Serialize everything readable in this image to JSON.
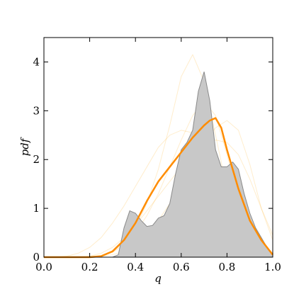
{
  "chart_data": {
    "type": "line",
    "x_label": "q",
    "y_label": "pdf",
    "xlim": [
      0,
      1
    ],
    "ylim": [
      0,
      4.5
    ],
    "xticks": [
      {
        "value": 0,
        "label": "0.0"
      },
      {
        "value": 0.2,
        "label": "0.2"
      },
      {
        "value": 0.4,
        "label": "0.4"
      },
      {
        "value": 0.6,
        "label": "0.6"
      },
      {
        "value": 0.8,
        "label": "0.8"
      },
      {
        "value": 1,
        "label": "1.0"
      }
    ],
    "yticks": [
      0,
      1,
      2,
      3,
      4
    ],
    "x": [
      0,
      0.05,
      0.1,
      0.15,
      0.2,
      0.25,
      0.3,
      0.35,
      0.4,
      0.45,
      0.5,
      0.55,
      0.6,
      0.65,
      0.7,
      0.75,
      0.8,
      0.85,
      0.9,
      0.95,
      1
    ],
    "series": [
      {
        "color": "#ffa500",
        "kind": "line",
        "width": 1,
        "opacity": 0.2,
        "values": [
          0,
          0,
          0,
          0,
          0,
          0.02,
          0.1,
          0.3,
          0.6,
          1.1,
          1.8,
          2.7,
          3.7,
          4.15,
          3.6,
          2.5,
          1.4,
          0.6,
          0.2,
          0.05,
          0
        ]
      },
      {
        "color": "#ffa500",
        "kind": "line",
        "width": 1,
        "opacity": 0.2,
        "values": [
          0,
          0,
          0,
          0,
          0.02,
          0.08,
          0.2,
          0.4,
          0.65,
          0.95,
          1.25,
          1.55,
          1.85,
          2.1,
          2.3,
          2.4,
          2.35,
          2.1,
          1.6,
          1.0,
          0.45
        ]
      },
      {
        "color": "#ffa500",
        "kind": "line",
        "width": 1,
        "opacity": 0.2,
        "values": [
          0,
          0,
          0,
          0,
          0,
          0.03,
          0.1,
          0.25,
          0.5,
          0.85,
          1.3,
          1.85,
          2.4,
          2.9,
          3.2,
          2.9,
          2.1,
          1.2,
          0.5,
          0.15,
          0.03
        ]
      },
      {
        "color": "#ffa500",
        "kind": "line",
        "width": 1,
        "opacity": 0.2,
        "values": [
          0,
          0,
          0.02,
          0.08,
          0.2,
          0.4,
          0.7,
          1.05,
          1.45,
          1.85,
          2.25,
          2.5,
          2.6,
          2.55,
          2.3,
          1.8,
          1.2,
          0.65,
          0.3,
          0.1,
          0.02
        ]
      },
      {
        "color": "#ffa500",
        "kind": "line",
        "width": 1,
        "opacity": 0.2,
        "values": [
          0,
          0,
          0,
          0,
          0,
          0.02,
          0.05,
          0.12,
          0.25,
          0.45,
          0.75,
          1.1,
          1.5,
          1.95,
          2.35,
          2.65,
          2.8,
          2.6,
          1.9,
          1.0,
          0.35
        ]
      },
      {
        "color": "#c8c8c8",
        "kind": "area",
        "edge": "#8a8a8a",
        "width": 1,
        "x": [
          0.3,
          0.325,
          0.35,
          0.375,
          0.4,
          0.425,
          0.45,
          0.475,
          0.5,
          0.525,
          0.55,
          0.575,
          0.6,
          0.625,
          0.65,
          0.675,
          0.7,
          0.725,
          0.75,
          0.775,
          0.8,
          0.825,
          0.85,
          0.875,
          0.9,
          0.925,
          0.95,
          0.975,
          1
        ],
        "values": [
          0,
          0.05,
          0.6,
          0.95,
          0.9,
          0.75,
          0.63,
          0.65,
          0.8,
          0.85,
          1.1,
          1.7,
          2.2,
          2.35,
          2.6,
          3.4,
          3.8,
          3.2,
          2.2,
          1.85,
          1.85,
          1.95,
          1.8,
          1.3,
          0.9,
          0.6,
          0.4,
          0.2,
          0.05
        ]
      },
      {
        "color": "#ff8c00",
        "kind": "line",
        "width": 2.5,
        "opacity": 1,
        "x": [
          0,
          0.2,
          0.25,
          0.3,
          0.35,
          0.4,
          0.45,
          0.5,
          0.55,
          0.6,
          0.65,
          0.7,
          0.725,
          0.75,
          0.775,
          0.8,
          0.85,
          0.9,
          0.95,
          1
        ],
        "values": [
          0,
          0,
          0.02,
          0.12,
          0.35,
          0.7,
          1.15,
          1.55,
          1.85,
          2.15,
          2.45,
          2.7,
          2.8,
          2.85,
          2.65,
          2.2,
          1.4,
          0.75,
          0.35,
          0.05
        ]
      }
    ]
  }
}
